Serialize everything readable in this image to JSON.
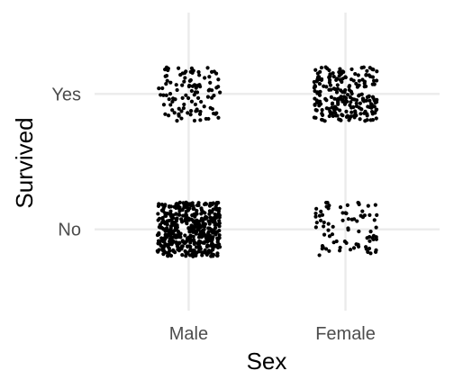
{
  "chart_data": {
    "type": "scatter",
    "subtype": "jitter",
    "xlabel": "Sex",
    "ylabel": "Survived",
    "x_categories": [
      "Male",
      "Female"
    ],
    "y_categories": [
      "No",
      "Yes"
    ],
    "grid": true,
    "legend": "none",
    "point_color": "#000000",
    "groups": [
      {
        "x": "Male",
        "y": "Yes",
        "count": 109
      },
      {
        "x": "Female",
        "y": "Yes",
        "count": 233
      },
      {
        "x": "Male",
        "y": "No",
        "count": 468
      },
      {
        "x": "Female",
        "y": "No",
        "count": 81
      }
    ],
    "jitter": {
      "width": 0.2,
      "height": 0.2
    }
  }
}
